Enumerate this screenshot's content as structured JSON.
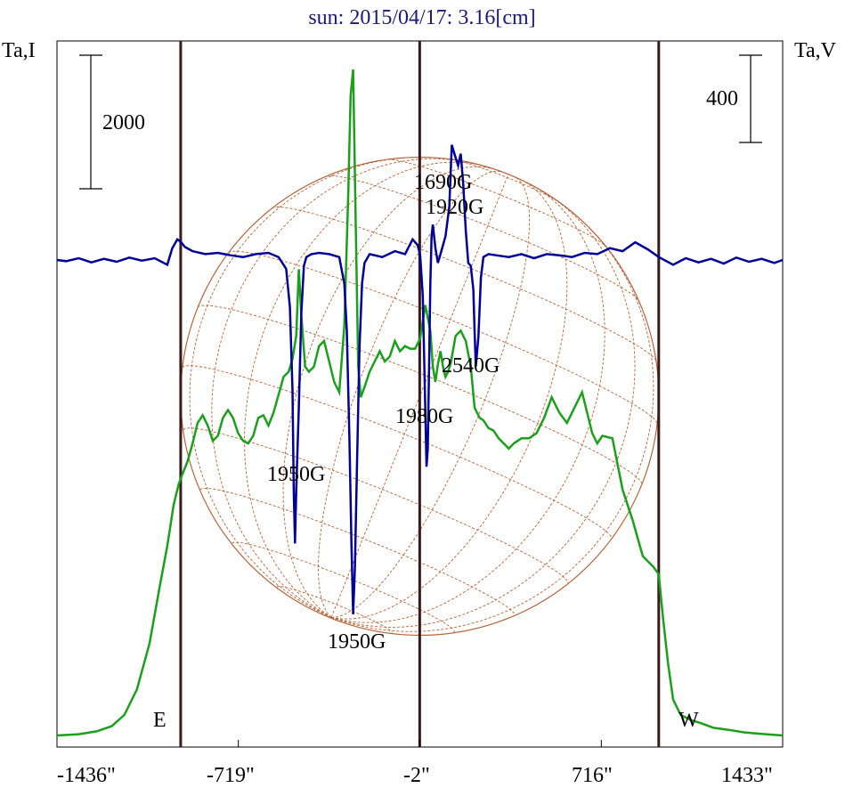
{
  "chart_data": {
    "type": "line",
    "title": "sun: 2015/04/17: 3.16[cm]",
    "ylabel_left": "Ta,I",
    "ylabel_right": "Ta,V",
    "x_ticks": [
      "-1436\"",
      "-719\"",
      "-2\"",
      "716\"",
      "1433\""
    ],
    "x_tick_values": [
      -1436,
      -719,
      -2,
      716,
      1433
    ],
    "xlim": [
      -1436,
      1433
    ],
    "limb_markers": [
      -947,
      -2,
      943
    ],
    "limb_labels": {
      "east": "E",
      "west": "W"
    },
    "scale_bars": [
      {
        "label": "2000",
        "axis": "left"
      },
      {
        "label": "400",
        "axis": "right"
      }
    ],
    "annotations": [
      {
        "text": "1690G",
        "x": 120
      },
      {
        "text": "1920G",
        "x": 165
      },
      {
        "text": "2540G",
        "x": 230
      },
      {
        "text": "1980G",
        "x": 40
      },
      {
        "text": "1950G",
        "x": -480
      },
      {
        "text": "1950G",
        "x": -265
      }
    ],
    "series": [
      {
        "name": "Ta,I",
        "color": "#1aa01a",
        "x": [
          -1436,
          -1350,
          -1280,
          -1220,
          -1170,
          -1120,
          -1070,
          -1030,
          -1000,
          -975,
          -955,
          -940,
          -920,
          -900,
          -880,
          -860,
          -840,
          -820,
          -800,
          -780,
          -760,
          -740,
          -720,
          -700,
          -680,
          -660,
          -640,
          -620,
          -600,
          -580,
          -560,
          -540,
          -520,
          -505,
          -490,
          -480,
          -470,
          -455,
          -440,
          -420,
          -400,
          -380,
          -360,
          -340,
          -320,
          -300,
          -285,
          -275,
          -265,
          -255,
          -245,
          -235,
          -220,
          -200,
          -180,
          -160,
          -140,
          -120,
          -100,
          -80,
          -60,
          -40,
          -20,
          0,
          20,
          40,
          50,
          60,
          70,
          80,
          90,
          100,
          110,
          120,
          140,
          160,
          180,
          200,
          215,
          225,
          235,
          250,
          270,
          290,
          310,
          330,
          350,
          370,
          400,
          430,
          460,
          490,
          520,
          550,
          580,
          610,
          640,
          660,
          680,
          700,
          720,
          760,
          800,
          840,
          880,
          900,
          920,
          943,
          960,
          980,
          1000,
          1030,
          1070,
          1110,
          1160,
          1220,
          1280,
          1350,
          1433
        ],
        "y": [
          0,
          25,
          80,
          180,
          400,
          900,
          1800,
          2900,
          3700,
          4500,
          4900,
          5100,
          5350,
          5700,
          6100,
          6250,
          6050,
          5750,
          5850,
          6200,
          6350,
          6200,
          5900,
          5750,
          5700,
          5850,
          6200,
          6250,
          6050,
          6300,
          6650,
          7000,
          7100,
          7350,
          7800,
          9100,
          8200,
          7200,
          7100,
          7200,
          7600,
          7700,
          7300,
          6900,
          6700,
          8000,
          10500,
          12500,
          13000,
          10000,
          7200,
          6600,
          6800,
          7100,
          7300,
          7500,
          7300,
          7400,
          7700,
          7500,
          7600,
          7550,
          7550,
          7750,
          8400,
          7900,
          7200,
          6900,
          7250,
          7500,
          7200,
          7000,
          7100,
          7250,
          7800,
          7900,
          7700,
          7200,
          6400,
          6300,
          6200,
          6150,
          6000,
          5950,
          5800,
          5700,
          5600,
          5700,
          5800,
          5800,
          5900,
          6200,
          6600,
          6300,
          6100,
          6400,
          6700,
          6300,
          5900,
          5700,
          5850,
          5800,
          4800,
          4200,
          3500,
          3400,
          3300,
          3150,
          2300,
          1400,
          700,
          400,
          300,
          240,
          150,
          110,
          60,
          30,
          0
        ]
      },
      {
        "name": "Ta,V",
        "color": "#000099",
        "x": [
          -1436,
          -1400,
          -1350,
          -1300,
          -1250,
          -1200,
          -1150,
          -1100,
          -1050,
          -1000,
          -980,
          -960,
          -945,
          -930,
          -900,
          -850,
          -800,
          -750,
          -700,
          -650,
          -600,
          -560,
          -530,
          -515,
          -505,
          -500,
          -495,
          -490,
          -480,
          -470,
          -460,
          -450,
          -430,
          -400,
          -360,
          -320,
          -300,
          -290,
          -280,
          -272,
          -265,
          -258,
          -250,
          -240,
          -230,
          -220,
          -200,
          -150,
          -100,
          -60,
          -30,
          -10,
          0,
          10,
          20,
          25,
          30,
          35,
          40,
          45,
          50,
          60,
          70,
          80,
          100,
          115,
          125,
          135,
          150,
          160,
          170,
          180,
          190,
          200,
          210,
          215,
          220,
          230,
          240,
          250,
          270,
          300,
          350,
          400,
          450,
          500,
          550,
          600,
          650,
          700,
          750,
          800,
          850,
          900,
          943,
          1000,
          1050,
          1100,
          1150,
          1200,
          1250,
          1300,
          1350,
          1400,
          1433
        ],
        "y": [
          0,
          -2,
          3,
          -4,
          2,
          -3,
          4,
          -1,
          3,
          -8,
          20,
          35,
          30,
          22,
          15,
          10,
          12,
          8,
          5,
          10,
          12,
          5,
          -15,
          -80,
          -220,
          -390,
          -480,
          -390,
          -250,
          -90,
          -10,
          5,
          10,
          12,
          10,
          5,
          -40,
          -120,
          -300,
          -480,
          -600,
          -520,
          -350,
          -150,
          -40,
          -5,
          10,
          5,
          15,
          10,
          35,
          25,
          8,
          -60,
          -250,
          -350,
          -320,
          -180,
          -40,
          40,
          60,
          20,
          -5,
          10,
          40,
          90,
          195,
          180,
          160,
          180,
          130,
          50,
          -5,
          -10,
          -50,
          -120,
          -180,
          -130,
          -30,
          5,
          10,
          8,
          5,
          10,
          3,
          10,
          8,
          5,
          12,
          10,
          20,
          15,
          30,
          18,
          5,
          -8,
          3,
          -4,
          2,
          -6,
          4,
          -3,
          2,
          -5,
          0
        ]
      }
    ],
    "grid": false,
    "legend": "none"
  }
}
